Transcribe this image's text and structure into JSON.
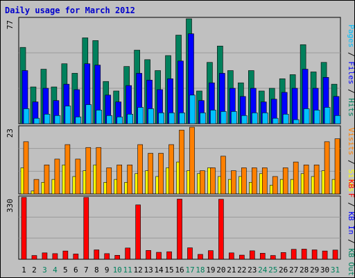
{
  "title": "Daily usage for March 2012",
  "colors": {
    "background": "#c0c0c0",
    "plot_background": "#c0c0c0",
    "grid": "#9a9a9a",
    "title": "#0000cc",
    "hits": "#00805c",
    "files": "#0000ff",
    "pages": "#00c0ff",
    "visits": "#ffff00",
    "sites": "#ff8000",
    "kbin": "#0000ff",
    "kbout": "#00805c",
    "kbf": "#ff0000",
    "weekday_label": "#000000",
    "weekend_label": "#00805c"
  },
  "chart_data": [
    {
      "type": "bar",
      "name": "hits-files-pages",
      "ylabel_parts": [
        "Pages",
        "Files",
        "Hits"
      ],
      "ymax_label": "77",
      "ylim": [
        0,
        77
      ],
      "categories": [
        "1",
        "2",
        "3",
        "4",
        "5",
        "6",
        "7",
        "8",
        "9",
        "10",
        "11",
        "12",
        "13",
        "14",
        "15",
        "16",
        "17",
        "18",
        "19",
        "20",
        "21",
        "22",
        "23",
        "24",
        "25",
        "26",
        "27",
        "28",
        "29",
        "30",
        "31"
      ],
      "series": [
        {
          "name": "Hits",
          "values": [
            56,
            27,
            40,
            27,
            44,
            37,
            63,
            61,
            31,
            24,
            42,
            54,
            47,
            39,
            50,
            65,
            77,
            24,
            45,
            57,
            39,
            30,
            39,
            24,
            26,
            33,
            36,
            58,
            38,
            45,
            29
          ]
        },
        {
          "name": "Files",
          "values": [
            39,
            16,
            26,
            17,
            29,
            25,
            44,
            43,
            21,
            16,
            28,
            37,
            32,
            25,
            33,
            46,
            66,
            17,
            30,
            37,
            26,
            20,
            26,
            16,
            18,
            23,
            26,
            40,
            26,
            34,
            20
          ]
        },
        {
          "name": "Pages",
          "values": [
            11,
            4,
            7,
            6,
            13,
            5,
            14,
            10,
            6,
            5,
            7,
            12,
            11,
            8,
            8,
            8,
            21,
            8,
            10,
            9,
            9,
            6,
            8,
            8,
            4,
            7,
            3,
            11,
            10,
            12,
            6
          ]
        }
      ]
    },
    {
      "type": "bar",
      "name": "visits-sites",
      "ylabel_parts": [
        "Visits",
        "Sites"
      ],
      "ymax_label": "23",
      "ylim": [
        0,
        23
      ],
      "categories": [
        "1",
        "2",
        "3",
        "4",
        "5",
        "6",
        "7",
        "8",
        "9",
        "10",
        "11",
        "12",
        "13",
        "14",
        "15",
        "16",
        "17",
        "18",
        "19",
        "20",
        "21",
        "22",
        "23",
        "24",
        "25",
        "26",
        "27",
        "28",
        "29",
        "30",
        "31"
      ],
      "series": [
        {
          "name": "Visits",
          "values": [
            9,
            1,
            4,
            5,
            10,
            6,
            8,
            10,
            4,
            5,
            4,
            7,
            8,
            6,
            9,
            11,
            8,
            7,
            9,
            6,
            5,
            6,
            4,
            7,
            3,
            5,
            5,
            7,
            6,
            8,
            5
          ]
        },
        {
          "name": "Sites",
          "values": [
            18,
            5,
            10,
            12,
            17,
            12,
            16,
            16,
            9,
            10,
            10,
            17,
            14,
            14,
            17,
            22,
            23,
            8,
            9,
            13,
            8,
            9,
            9,
            9,
            6,
            9,
            11,
            10,
            10,
            18,
            19
          ]
        }
      ]
    },
    {
      "type": "bar",
      "name": "kb",
      "ylabel_parts": [
        "KB F",
        "KB In",
        "KB Out"
      ],
      "ymax_label": "330",
      "ylim": [
        0,
        330
      ],
      "categories": [
        "1",
        "2",
        "3",
        "4",
        "5",
        "6",
        "7",
        "8",
        "9",
        "10",
        "11",
        "12",
        "13",
        "14",
        "15",
        "16",
        "17",
        "18",
        "19",
        "20",
        "21",
        "22",
        "23",
        "24",
        "25",
        "26",
        "27",
        "28",
        "29",
        "30",
        "31"
      ],
      "series": [
        {
          "name": "KB F",
          "values": [
            330,
            20,
            34,
            30,
            44,
            28,
            330,
            50,
            30,
            21,
            60,
            290,
            47,
            37,
            40,
            321,
            61,
            26,
            46,
            320,
            34,
            22,
            45,
            32,
            20,
            36,
            53,
            54,
            50,
            44,
            49
          ]
        }
      ]
    }
  ],
  "day_labels": [
    "1",
    "2",
    "3",
    "4",
    "5",
    "6",
    "7",
    "8",
    "9",
    "10",
    "11",
    "12",
    "13",
    "14",
    "15",
    "16",
    "17",
    "18",
    "19",
    "20",
    "21",
    "22",
    "23",
    "24",
    "25",
    "26",
    "27",
    "28",
    "29",
    "30",
    "31"
  ],
  "weekend_days": [
    "3",
    "4",
    "10",
    "11",
    "17",
    "18",
    "24",
    "25",
    "31"
  ]
}
